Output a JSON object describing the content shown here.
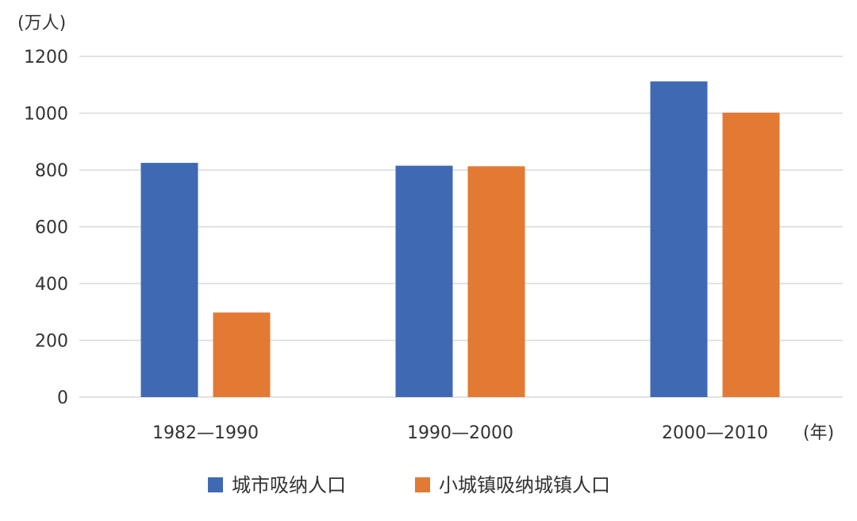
{
  "chart_data": {
    "type": "bar",
    "title": "",
    "ylabel": "(万人)",
    "xlabel": "(年)",
    "ylim": [
      0,
      1200
    ],
    "yticks": [
      0,
      200,
      400,
      600,
      800,
      1000,
      1200
    ],
    "categories": [
      "1982—1990",
      "1990—2000",
      "2000—2010"
    ],
    "series": [
      {
        "name": "城市吸纳人口",
        "color": "#3f6ab3",
        "values": [
          825,
          815,
          1112
        ]
      },
      {
        "name": "小城镇吸纳城镇人口",
        "color": "#e27a34",
        "values": [
          298,
          813,
          1002
        ]
      }
    ],
    "legend_position": "bottom",
    "grid": true
  }
}
